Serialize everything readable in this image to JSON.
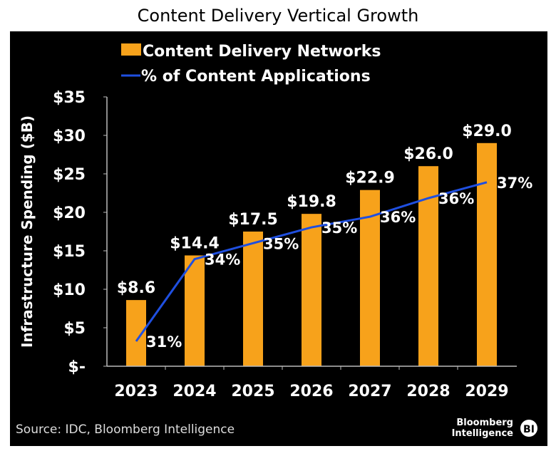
{
  "chart_data": {
    "type": "bar",
    "title": "Content Delivery Vertical Growth",
    "ylabel": "Infrastructure Spending ($B)",
    "xlabel": "",
    "categories": [
      "2023",
      "2024",
      "2025",
      "2026",
      "2027",
      "2028",
      "2029"
    ],
    "ylim": [
      0,
      35
    ],
    "yticks": [
      0,
      5,
      10,
      15,
      20,
      25,
      30,
      35
    ],
    "ytick_labels": [
      "$-",
      "$5",
      "$10",
      "$15",
      "$20",
      "$25",
      "$30",
      "$35"
    ],
    "grid": false,
    "legend_position": "top",
    "series": [
      {
        "name": "Content Delivery Networks",
        "type": "bar",
        "color": "#F7A21B",
        "values": [
          8.6,
          14.4,
          17.5,
          19.8,
          22.9,
          26.0,
          29.0
        ],
        "labels": [
          "$8.6",
          "$14.4",
          "$17.5",
          "$19.8",
          "$22.9",
          "$26.0",
          "$29.0"
        ]
      },
      {
        "name": "% of Content Applications",
        "type": "line",
        "color": "#1F4FE0",
        "axis": "secondary (hidden)",
        "values": [
          31.0,
          34.1,
          34.7,
          35.3,
          35.7,
          36.4,
          37.0
        ],
        "labels": [
          "31%",
          "34%",
          "35%",
          "35%",
          "36%",
          "36%",
          "37%"
        ]
      }
    ],
    "source": "Source: IDC, Bloomberg Intelligence",
    "logo": {
      "text": "Bloomberg Intelligence",
      "badge": "BI"
    },
    "background": "#000000"
  }
}
